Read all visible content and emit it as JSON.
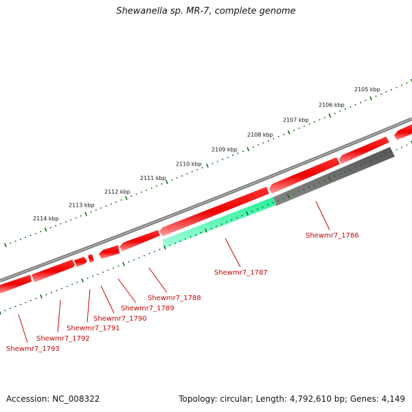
{
  "title": "Shewanella sp. MR-7, complete genome",
  "footer": {
    "accession": "Accession: NC_008322",
    "topology": "Topology: circular; Length: 4,792,610 bp; Genes: 4,149"
  },
  "colors": {
    "backbone": "#7a7a7a",
    "gene_forward": "#ee0000",
    "gene_highlight": "#22ee99",
    "gene_grey": "#555555",
    "tick": "#116611",
    "label": "#cc0000"
  },
  "scale_labels": [
    "2114 kbp",
    "2113 kbp",
    "2112 kbp",
    "2111 kbp",
    "2110 kbp",
    "2109 kbp",
    "2108 kbp",
    "2107 kbp",
    "2106 kbp",
    "2105 kbp"
  ],
  "genes": [
    {
      "label": "Shewmr7_1786",
      "color": "grey"
    },
    {
      "label": "Shewmr7_1787",
      "color": "highlight"
    },
    {
      "label": "Shewmr7_1788",
      "color": "forward"
    },
    {
      "label": "Shewmr7_1789",
      "color": "forward"
    },
    {
      "label": "Shewmr7_1790",
      "color": "forward"
    },
    {
      "label": "Shewmr7_1791",
      "color": "forward"
    },
    {
      "label": "Shewmr7_1792",
      "color": "forward"
    },
    {
      "label": "Shewmr7_1793",
      "color": "forward"
    }
  ]
}
